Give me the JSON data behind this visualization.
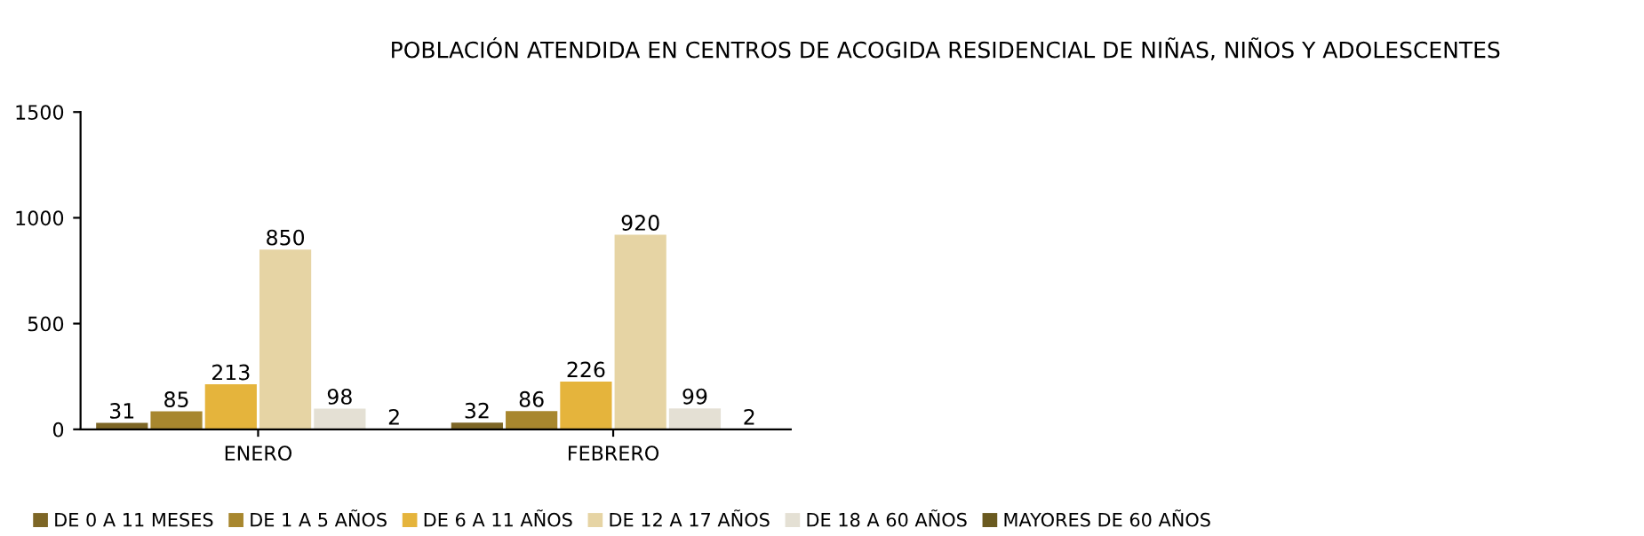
{
  "chart_data": {
    "type": "bar",
    "title": "POBLACIÓN ATENDIDA EN CENTROS DE ACOGIDA RESIDENCIAL DE NIÑAS, NIÑOS Y ADOLESCENTES",
    "categories": [
      "ENERO",
      "FEBRERO"
    ],
    "series": [
      {
        "name": "DE 0 A 11 MESES",
        "color": "#7d6626",
        "values": [
          31,
          32
        ]
      },
      {
        "name": "DE 1 A 5 AÑOS",
        "color": "#a8872e",
        "values": [
          85,
          86
        ]
      },
      {
        "name": "DE 6 A 11 AÑOS",
        "color": "#e5b43c",
        "values": [
          213,
          226
        ]
      },
      {
        "name": "DE 12 A 17 AÑOS",
        "color": "#e6d4a4",
        "values": [
          850,
          920
        ]
      },
      {
        "name": "DE 18 A 60 AÑOS",
        "color": "#e4e0d4",
        "values": [
          98,
          99
        ]
      },
      {
        "name": "MAYORES DE 60 AÑOS",
        "color": "#6a5a20",
        "values": [
          2,
          2
        ]
      }
    ],
    "ylim": [
      0,
      1500
    ],
    "yticks": [
      0,
      500,
      1000,
      1500
    ],
    "grid": false,
    "legend": "bottom",
    "data_labels": true
  }
}
